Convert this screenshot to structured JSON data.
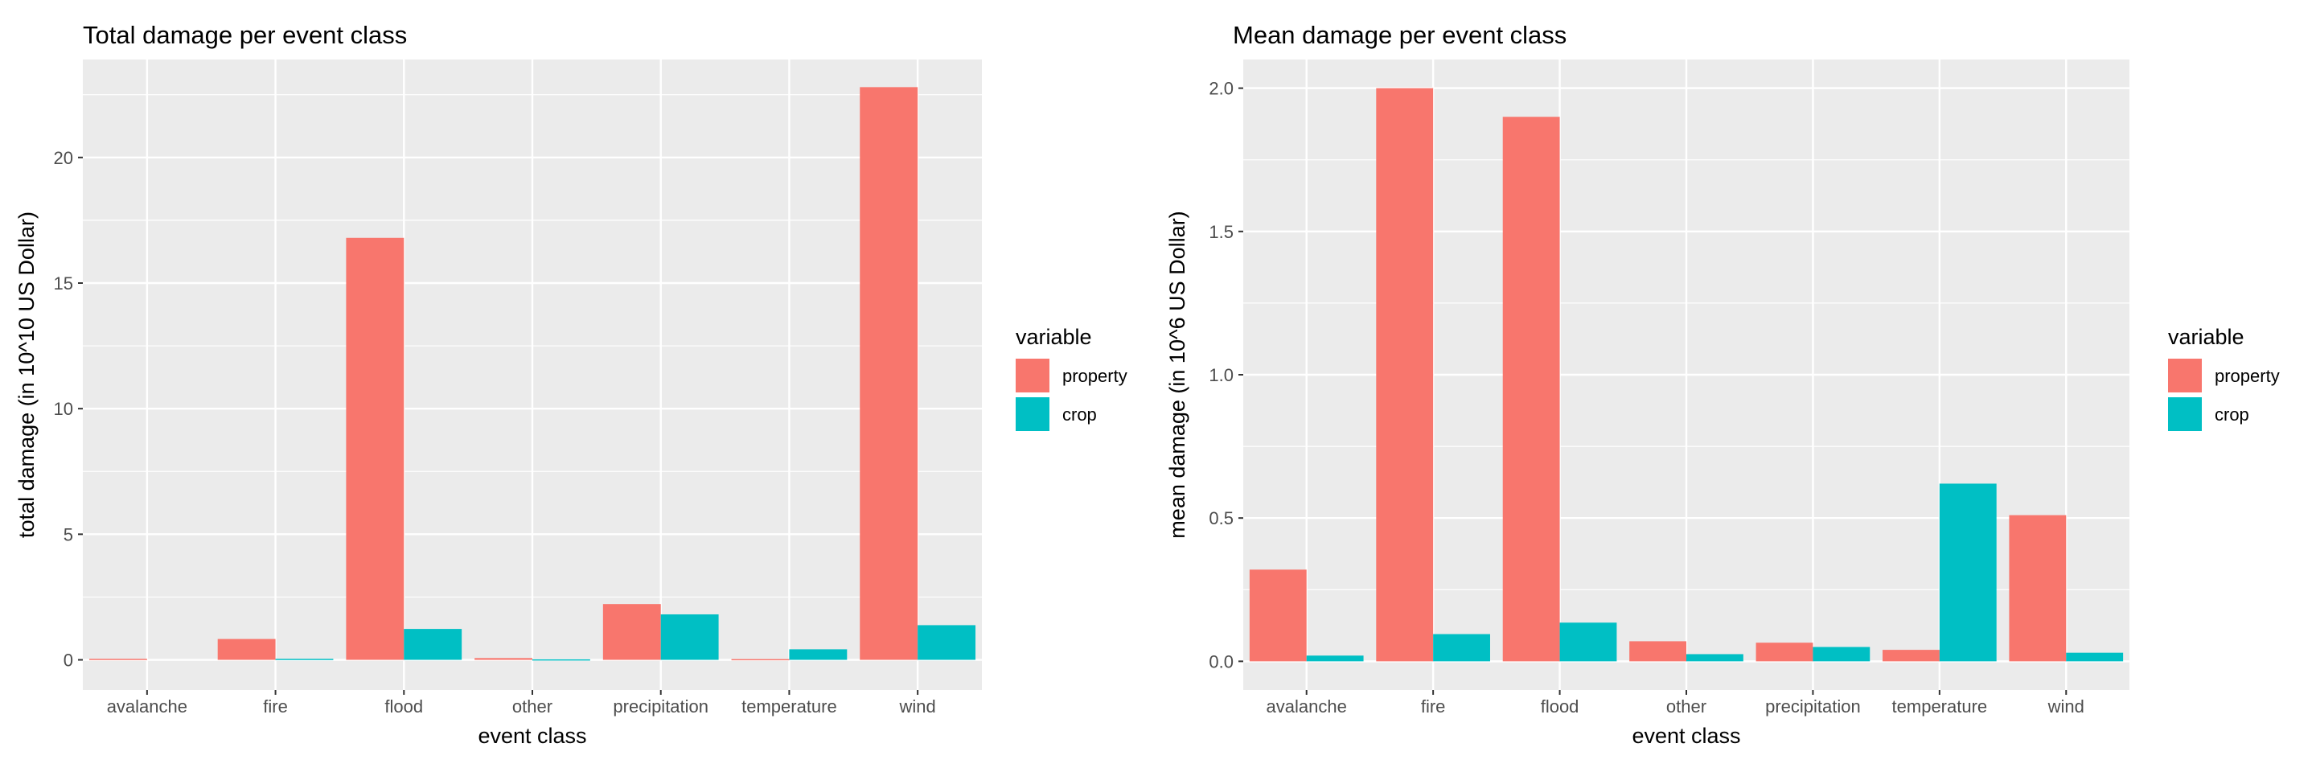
{
  "colors": {
    "property": "#F8766D",
    "crop": "#00BFC4",
    "panel": "#EBEBEB",
    "grid": "#FFFFFF"
  },
  "chart_data": [
    {
      "type": "bar",
      "title": "Total damage per event class",
      "xlabel": "event class",
      "ylabel": "total damage (in 10^10 US Dollar)",
      "categories": [
        "avalanche",
        "fire",
        "flood",
        "other",
        "precipitation",
        "temperature",
        "wind"
      ],
      "series": [
        {
          "name": "property",
          "values": [
            0.04,
            0.83,
            16.8,
            0.07,
            2.22,
            0.03,
            22.8
          ]
        },
        {
          "name": "crop",
          "values": [
            0.0,
            0.04,
            1.23,
            0.02,
            1.81,
            0.42,
            1.38
          ]
        }
      ],
      "ylim": [
        -1.2,
        23.9
      ],
      "yticks": [
        0,
        5,
        10,
        15,
        20
      ],
      "ytick_labels": [
        "0",
        "5",
        "10",
        "15",
        "20"
      ],
      "grid": true,
      "legend": {
        "title": "variable",
        "position": "right"
      }
    },
    {
      "type": "bar",
      "title": "Mean damage per event class",
      "xlabel": "event class",
      "ylabel": "mean damage (in 10^6 US Dollar)",
      "categories": [
        "avalanche",
        "fire",
        "flood",
        "other",
        "precipitation",
        "temperature",
        "wind"
      ],
      "series": [
        {
          "name": "property",
          "values": [
            0.32,
            2.0,
            1.9,
            0.07,
            0.065,
            0.04,
            0.51
          ]
        },
        {
          "name": "crop",
          "values": [
            0.02,
            0.095,
            0.135,
            0.025,
            0.05,
            0.62,
            0.03
          ]
        }
      ],
      "ylim": [
        -0.1,
        2.1
      ],
      "yticks": [
        0,
        0.5,
        1.0,
        1.5,
        2.0
      ],
      "ytick_labels": [
        "0.0",
        "0.5",
        "1.0",
        "1.5",
        "2.0"
      ],
      "grid": true,
      "legend": {
        "title": "variable",
        "position": "right"
      }
    }
  ]
}
